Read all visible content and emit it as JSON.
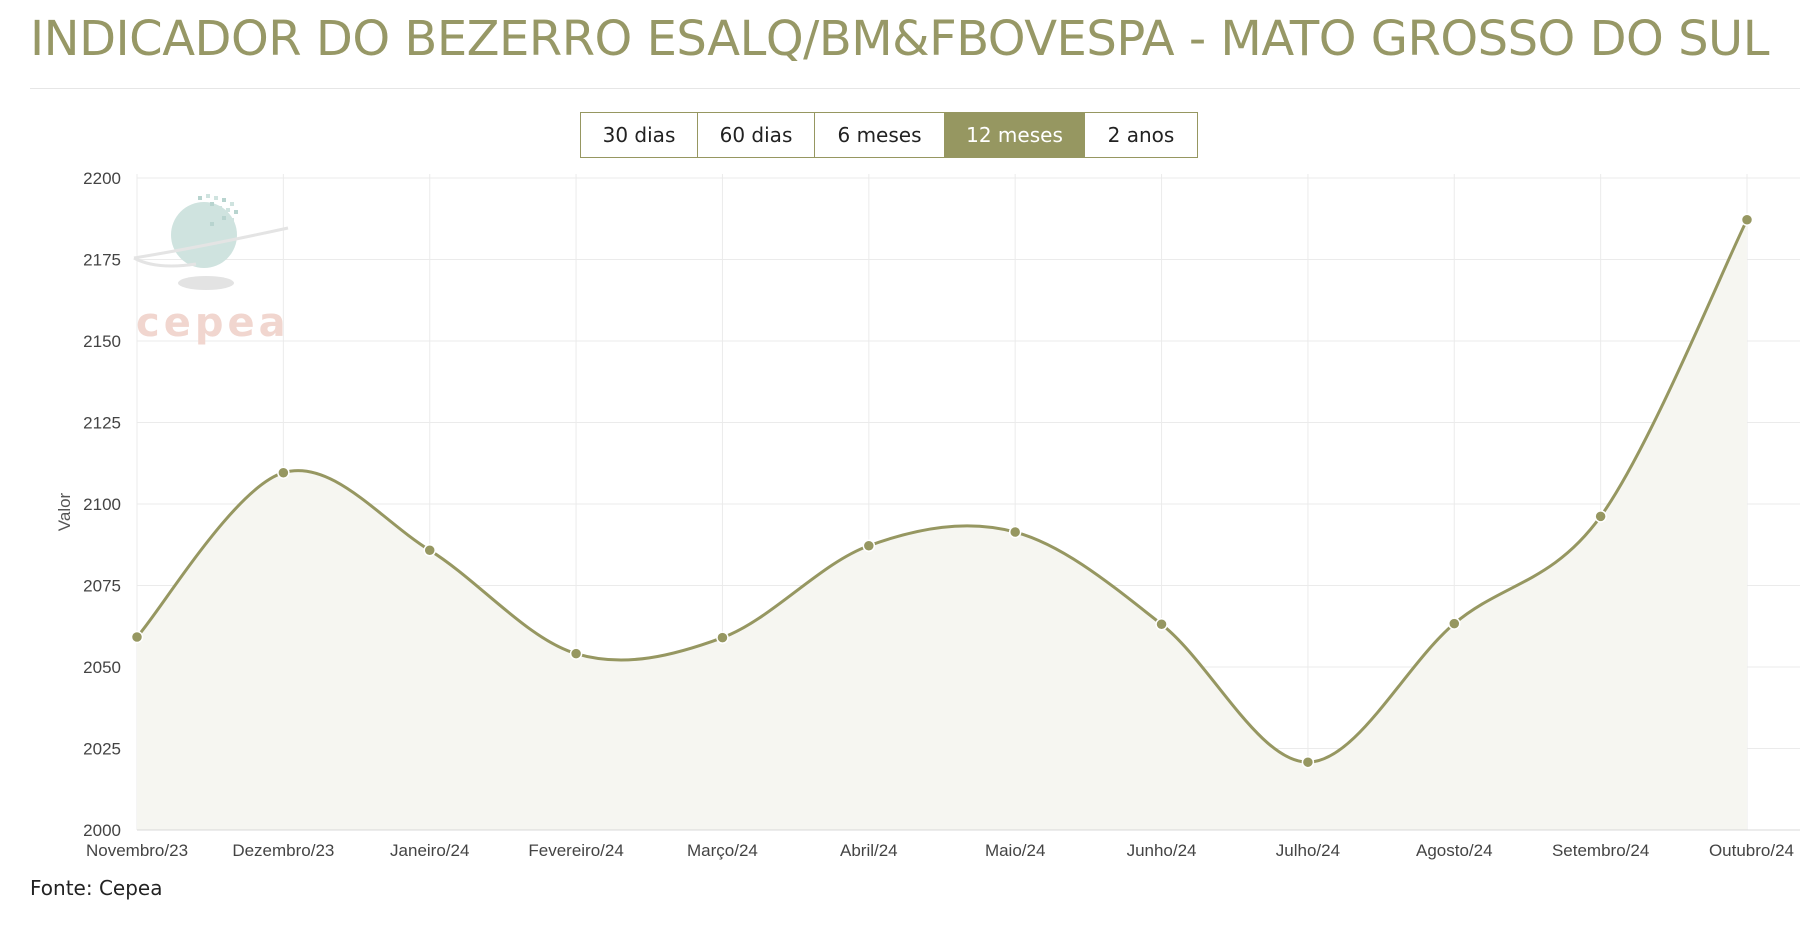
{
  "header": {
    "title": "INDICADOR DO BEZERRO ESALQ/BM&FBOVESPA - MATO GROSSO DO SUL"
  },
  "range_selector": {
    "options": [
      "30 dias",
      "60 dias",
      "6 meses",
      "12 meses",
      "2 anos"
    ],
    "selected": "12 meses"
  },
  "footer": {
    "source": "Fonte: Cepea"
  },
  "watermark": {
    "text": "cepea"
  },
  "colors": {
    "accent": "#969761",
    "title": "#979866",
    "area_fill": "#f6f6f1",
    "grid": "#ebebeb",
    "watermark_text": "#f1d6cf",
    "watermark_globe": "#cfe3df"
  },
  "chart_data": {
    "type": "area",
    "categories": [
      "Novembro/23",
      "Dezembro/23",
      "Janeiro/24",
      "Fevereiro/24",
      "Março/24",
      "Abril/24",
      "Maio/24",
      "Junho/24",
      "Julho/24",
      "Agosto/24",
      "Setembro/24",
      "Outubro/24"
    ],
    "series": [
      {
        "values": [
          2059.2,
          2109.6,
          2085.8,
          2054.1,
          2059.0,
          2087.2,
          2091.4,
          2063.1,
          2020.8,
          2063.3,
          2096.2,
          2187.2
        ]
      }
    ],
    "ylabel": "Valor",
    "xlabel": "",
    "ylim": [
      2000,
      2200
    ],
    "yticks": [
      2000,
      2025,
      2050,
      2075,
      2100,
      2125,
      2150,
      2175,
      2200
    ],
    "grid": true,
    "smooth": true,
    "markers": true
  }
}
